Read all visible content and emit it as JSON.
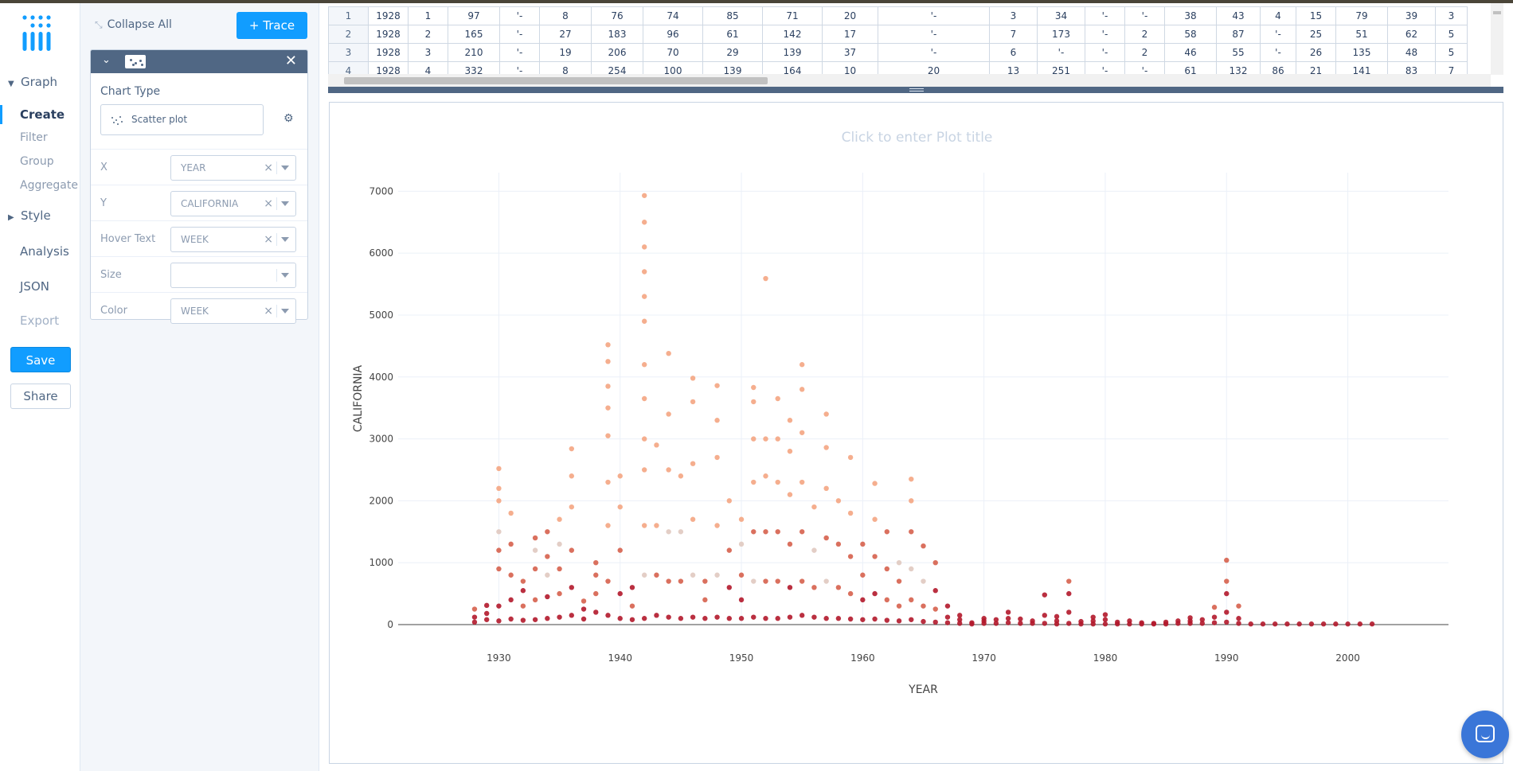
{
  "nav": {
    "graph": "Graph",
    "create": "Create",
    "filter": "Filter",
    "group": "Group",
    "aggregate": "Aggregate",
    "style": "Style",
    "analysis": "Analysis",
    "json": "JSON",
    "export": "Export",
    "save": "Save",
    "share": "Share"
  },
  "panel": {
    "collapse_all": "Collapse All",
    "trace_button": "+ Trace",
    "chart_type_label": "Chart Type",
    "chart_type_value": "Scatter plot",
    "fields": [
      {
        "label": "X",
        "value": "YEAR"
      },
      {
        "label": "Y",
        "value": "CALIFORNIA"
      },
      {
        "label": "Hover Text",
        "value": "WEEK"
      },
      {
        "label": "Size",
        "value": ""
      },
      {
        "label": "Color",
        "value": "WEEK"
      }
    ]
  },
  "grid": {
    "rows": [
      [
        "1",
        "1928",
        "1",
        "97",
        "'-",
        "8",
        "76",
        "74",
        "85",
        "71",
        "20",
        "'-",
        "3",
        "34",
        "'-",
        "'-",
        "38",
        "43",
        "4",
        "15",
        "79",
        "39",
        "3"
      ],
      [
        "2",
        "1928",
        "2",
        "165",
        "'-",
        "27",
        "183",
        "96",
        "61",
        "142",
        "17",
        "'-",
        "7",
        "173",
        "'-",
        "2",
        "58",
        "87",
        "'-",
        "25",
        "51",
        "62",
        "5"
      ],
      [
        "3",
        "1928",
        "3",
        "210",
        "'-",
        "19",
        "206",
        "70",
        "29",
        "139",
        "37",
        "'-",
        "6",
        "'-",
        "'-",
        "2",
        "46",
        "55",
        "'-",
        "26",
        "135",
        "48",
        "5"
      ],
      [
        "4",
        "1928",
        "4",
        "332",
        "'-",
        "8",
        "254",
        "100",
        "139",
        "164",
        "10",
        "20",
        "13",
        "251",
        "'-",
        "'-",
        "61",
        "132",
        "86",
        "21",
        "141",
        "83",
        "7"
      ]
    ]
  },
  "plot": {
    "title_placeholder": "Click to enter Plot title"
  },
  "chart_data": {
    "type": "scatter",
    "title": "",
    "xlabel": "YEAR",
    "ylabel": "CALIFORNIA",
    "xlim": [
      1921.7,
      2008.3
    ],
    "ylim": [
      0,
      7300
    ],
    "x_ticks": [
      1930,
      1940,
      1950,
      1960,
      1970,
      1980,
      1990,
      2000
    ],
    "y_ticks": [
      0,
      1000,
      2000,
      3000,
      4000,
      5000,
      6000,
      7000
    ],
    "grid": true,
    "legend": "none",
    "color_by": "WEEK",
    "colors": [
      "#b2182b",
      "#d6604d",
      "#f4a582",
      "#e0c9c0"
    ],
    "series": [
      {
        "name": "",
        "points": [
          [
            1928,
            40
          ],
          [
            1928,
            120
          ],
          [
            1928,
            250
          ],
          [
            1929,
            80
          ],
          [
            1929,
            180
          ],
          [
            1929,
            310
          ],
          [
            1930,
            60
          ],
          [
            1930,
            300
          ],
          [
            1930,
            900
          ],
          [
            1930,
            1500
          ],
          [
            1930,
            2000
          ],
          [
            1930,
            2200
          ],
          [
            1930,
            2520
          ],
          [
            1930,
            1200
          ],
          [
            1931,
            90
          ],
          [
            1931,
            400
          ],
          [
            1931,
            800
          ],
          [
            1931,
            1300
          ],
          [
            1931,
            1800
          ],
          [
            1932,
            70
          ],
          [
            1932,
            300
          ],
          [
            1932,
            550
          ],
          [
            1932,
            700
          ],
          [
            1933,
            80
          ],
          [
            1933,
            400
          ],
          [
            1933,
            900
          ],
          [
            1933,
            1400
          ],
          [
            1933,
            1200
          ],
          [
            1934,
            100
          ],
          [
            1934,
            450
          ],
          [
            1934,
            800
          ],
          [
            1934,
            1100
          ],
          [
            1934,
            1500
          ],
          [
            1935,
            120
          ],
          [
            1935,
            500
          ],
          [
            1935,
            900
          ],
          [
            1935,
            1300
          ],
          [
            1935,
            1700
          ],
          [
            1936,
            150
          ],
          [
            1936,
            600
          ],
          [
            1936,
            1200
          ],
          [
            1936,
            1900
          ],
          [
            1936,
            2400
          ],
          [
            1936,
            2840
          ],
          [
            1937,
            90
          ],
          [
            1937,
            250
          ],
          [
            1937,
            380
          ],
          [
            1938,
            200
          ],
          [
            1938,
            500
          ],
          [
            1938,
            800
          ],
          [
            1938,
            1000
          ],
          [
            1939,
            150
          ],
          [
            1939,
            700
          ],
          [
            1939,
            1600
          ],
          [
            1939,
            2300
          ],
          [
            1939,
            3050
          ],
          [
            1939,
            3500
          ],
          [
            1939,
            3850
          ],
          [
            1939,
            4250
          ],
          [
            1939,
            4520
          ],
          [
            1940,
            100
          ],
          [
            1940,
            500
          ],
          [
            1940,
            1200
          ],
          [
            1940,
            1900
          ],
          [
            1940,
            2400
          ],
          [
            1941,
            80
          ],
          [
            1941,
            300
          ],
          [
            1941,
            600
          ],
          [
            1942,
            100
          ],
          [
            1942,
            800
          ],
          [
            1942,
            1600
          ],
          [
            1942,
            2500
          ],
          [
            1942,
            3000
          ],
          [
            1942,
            3650
          ],
          [
            1942,
            4200
          ],
          [
            1942,
            4900
          ],
          [
            1942,
            5300
          ],
          [
            1942,
            5700
          ],
          [
            1942,
            6100
          ],
          [
            1942,
            6500
          ],
          [
            1942,
            6930
          ],
          [
            1943,
            150
          ],
          [
            1943,
            800
          ],
          [
            1943,
            1600
          ],
          [
            1943,
            2900
          ],
          [
            1944,
            120
          ],
          [
            1944,
            700
          ],
          [
            1944,
            1500
          ],
          [
            1944,
            2500
          ],
          [
            1944,
            3400
          ],
          [
            1944,
            4380
          ],
          [
            1945,
            100
          ],
          [
            1945,
            700
          ],
          [
            1945,
            1500
          ],
          [
            1945,
            2400
          ],
          [
            1946,
            120
          ],
          [
            1946,
            800
          ],
          [
            1946,
            1700
          ],
          [
            1946,
            2600
          ],
          [
            1946,
            3600
          ],
          [
            1946,
            3980
          ],
          [
            1947,
            100
          ],
          [
            1947,
            400
          ],
          [
            1947,
            700
          ],
          [
            1948,
            120
          ],
          [
            1948,
            800
          ],
          [
            1948,
            1600
          ],
          [
            1948,
            2700
          ],
          [
            1948,
            3300
          ],
          [
            1948,
            3860
          ],
          [
            1949,
            100
          ],
          [
            1949,
            600
          ],
          [
            1949,
            1200
          ],
          [
            1949,
            2000
          ],
          [
            1950,
            100
          ],
          [
            1950,
            400
          ],
          [
            1950,
            800
          ],
          [
            1950,
            1300
          ],
          [
            1950,
            1700
          ],
          [
            1951,
            120
          ],
          [
            1951,
            700
          ],
          [
            1951,
            1500
          ],
          [
            1951,
            2300
          ],
          [
            1951,
            3000
          ],
          [
            1951,
            3600
          ],
          [
            1951,
            3830
          ],
          [
            1952,
            100
          ],
          [
            1952,
            700
          ],
          [
            1952,
            1500
          ],
          [
            1952,
            2400
          ],
          [
            1952,
            3000
          ],
          [
            1952,
            5590
          ],
          [
            1953,
            100
          ],
          [
            1953,
            700
          ],
          [
            1953,
            1500
          ],
          [
            1953,
            2300
          ],
          [
            1953,
            3000
          ],
          [
            1953,
            3650
          ],
          [
            1954,
            120
          ],
          [
            1954,
            600
          ],
          [
            1954,
            1300
          ],
          [
            1954,
            2100
          ],
          [
            1954,
            2800
          ],
          [
            1954,
            3300
          ],
          [
            1955,
            150
          ],
          [
            1955,
            700
          ],
          [
            1955,
            1500
          ],
          [
            1955,
            2300
          ],
          [
            1955,
            3100
          ],
          [
            1955,
            3800
          ],
          [
            1955,
            4200
          ],
          [
            1956,
            120
          ],
          [
            1956,
            600
          ],
          [
            1956,
            1200
          ],
          [
            1956,
            1900
          ],
          [
            1957,
            100
          ],
          [
            1957,
            700
          ],
          [
            1957,
            1400
          ],
          [
            1957,
            2200
          ],
          [
            1957,
            2860
          ],
          [
            1957,
            3400
          ],
          [
            1958,
            100
          ],
          [
            1958,
            600
          ],
          [
            1958,
            1300
          ],
          [
            1958,
            2000
          ],
          [
            1959,
            90
          ],
          [
            1959,
            500
          ],
          [
            1959,
            1100
          ],
          [
            1959,
            1800
          ],
          [
            1959,
            2700
          ],
          [
            1960,
            80
          ],
          [
            1960,
            400
          ],
          [
            1960,
            800
          ],
          [
            1960,
            1300
          ],
          [
            1961,
            90
          ],
          [
            1961,
            500
          ],
          [
            1961,
            1100
          ],
          [
            1961,
            1700
          ],
          [
            1961,
            2280
          ],
          [
            1962,
            70
          ],
          [
            1962,
            400
          ],
          [
            1962,
            900
          ],
          [
            1962,
            1500
          ],
          [
            1963,
            60
          ],
          [
            1963,
            300
          ],
          [
            1963,
            700
          ],
          [
            1963,
            1000
          ],
          [
            1964,
            80
          ],
          [
            1964,
            400
          ],
          [
            1964,
            900
          ],
          [
            1964,
            1500
          ],
          [
            1964,
            2000
          ],
          [
            1964,
            2350
          ],
          [
            1965,
            50
          ],
          [
            1965,
            300
          ],
          [
            1965,
            700
          ],
          [
            1965,
            1270
          ],
          [
            1966,
            40
          ],
          [
            1966,
            250
          ],
          [
            1966,
            550
          ],
          [
            1966,
            1000
          ],
          [
            1967,
            30
          ],
          [
            1967,
            120
          ],
          [
            1967,
            300
          ],
          [
            1968,
            20
          ],
          [
            1968,
            80
          ],
          [
            1968,
            150
          ],
          [
            1969,
            10
          ],
          [
            1969,
            30
          ],
          [
            1970,
            20
          ],
          [
            1970,
            60
          ],
          [
            1970,
            100
          ],
          [
            1971,
            20
          ],
          [
            1971,
            80
          ],
          [
            1972,
            30
          ],
          [
            1972,
            100
          ],
          [
            1972,
            200
          ],
          [
            1973,
            20
          ],
          [
            1973,
            90
          ],
          [
            1974,
            20
          ],
          [
            1974,
            60
          ],
          [
            1975,
            20
          ],
          [
            1975,
            150
          ],
          [
            1975,
            480
          ],
          [
            1976,
            10
          ],
          [
            1976,
            60
          ],
          [
            1976,
            130
          ],
          [
            1977,
            20
          ],
          [
            1977,
            200
          ],
          [
            1977,
            500
          ],
          [
            1977,
            700
          ],
          [
            1978,
            10
          ],
          [
            1978,
            50
          ],
          [
            1979,
            10
          ],
          [
            1979,
            60
          ],
          [
            1979,
            120
          ],
          [
            1980,
            10
          ],
          [
            1980,
            80
          ],
          [
            1980,
            160
          ],
          [
            1981,
            10
          ],
          [
            1981,
            40
          ],
          [
            1982,
            10
          ],
          [
            1982,
            60
          ],
          [
            1983,
            10
          ],
          [
            1983,
            30
          ],
          [
            1984,
            10
          ],
          [
            1984,
            20
          ],
          [
            1985,
            10
          ],
          [
            1985,
            40
          ],
          [
            1986,
            20
          ],
          [
            1986,
            60
          ],
          [
            1987,
            20
          ],
          [
            1987,
            60
          ],
          [
            1987,
            110
          ],
          [
            1988,
            20
          ],
          [
            1988,
            80
          ],
          [
            1989,
            30
          ],
          [
            1989,
            120
          ],
          [
            1989,
            280
          ],
          [
            1990,
            40
          ],
          [
            1990,
            200
          ],
          [
            1990,
            500
          ],
          [
            1990,
            700
          ],
          [
            1990,
            1040
          ],
          [
            1991,
            20
          ],
          [
            1991,
            100
          ],
          [
            1991,
            300
          ],
          [
            1992,
            10
          ],
          [
            1993,
            10
          ],
          [
            1994,
            10
          ],
          [
            1995,
            10
          ],
          [
            1996,
            10
          ],
          [
            1997,
            10
          ],
          [
            1998,
            10
          ],
          [
            1999,
            10
          ],
          [
            2000,
            10
          ],
          [
            2001,
            10
          ],
          [
            2002,
            10
          ]
        ]
      }
    ]
  }
}
